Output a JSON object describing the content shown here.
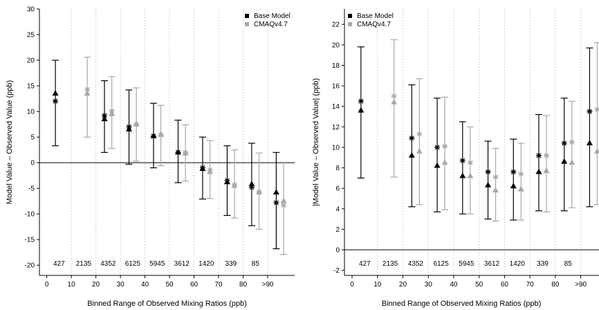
{
  "chart_data": [
    {
      "type": "scatter",
      "xlabel": "Binned Range of Observed Mixing Ratios (ppb)",
      "ylabel": "Model Value – Observed Value (ppb)",
      "xlim": [
        -3,
        101
      ],
      "ylim": [
        -22,
        30
      ],
      "xticks": [
        "0",
        "10",
        "20",
        "30",
        "40",
        "50",
        "60",
        "70",
        "80",
        ">90"
      ],
      "yticks": [
        "-20",
        "-15",
        "-10",
        "-5",
        "0",
        "5",
        "10",
        "15",
        "20",
        "25",
        "30"
      ],
      "bin_counts": [
        "427",
        "2135",
        "4352",
        "6125",
        "5945",
        "3612",
        "1420",
        "339",
        "85"
      ],
      "grid": "vertical dotted lines at bin edges",
      "reference_line": 0,
      "legend_position": "top-right",
      "legend": [
        "Base Model",
        "CMAQv4.7"
      ],
      "colors": {
        "base": "#000000",
        "cmaq": "#a8a8a8"
      },
      "series": [
        {
          "name": "Base Model",
          "x": [
            3.5,
            23.5,
            33.5,
            43.5,
            53.5,
            63.5,
            73.5,
            83.5,
            93.5
          ],
          "median": [
            13.5,
            8.5,
            6.5,
            5.2,
            2.0,
            -1.2,
            -3.8,
            -4.2,
            -5.8
          ],
          "mean": [
            12.0,
            9.2,
            7.0,
            5.2,
            2.0,
            -1.0,
            -3.5,
            -4.8,
            -7.8
          ],
          "lower": [
            3.3,
            2.0,
            -0.3,
            -1.0,
            -3.9,
            -7.1,
            -10.3,
            -12.3,
            -16.8
          ],
          "upper": [
            20.0,
            16.0,
            14.2,
            11.6,
            8.3,
            5.0,
            3.3,
            3.8,
            2.0
          ]
        },
        {
          "name": "CMAQv4.7",
          "x": [
            16.5,
            26.5,
            36.5,
            46.5,
            56.5,
            66.5,
            76.5,
            86.5,
            96.5
          ],
          "median": [
            13.5,
            9.5,
            7.5,
            5.5,
            1.8,
            -1.8,
            -4.5,
            -5.8,
            -7.5
          ],
          "mean": [
            14.3,
            10.1,
            7.5,
            5.4,
            2.0,
            -1.4,
            -4.3,
            -5.7,
            -8.3
          ],
          "lower": [
            5.0,
            2.8,
            0.3,
            -0.6,
            -3.6,
            -7.0,
            -10.8,
            -13.0,
            -17.9
          ],
          "upper": [
            20.6,
            16.8,
            14.6,
            11.2,
            7.4,
            4.3,
            2.5,
            1.9,
            0.1
          ]
        }
      ]
    },
    {
      "type": "scatter",
      "xlabel": "Binned Range of Observed Mixing Ratios (ppb)",
      "ylabel": "|Model Value – Observed Value| (ppb)",
      "xlim": [
        -3,
        101
      ],
      "ylim": [
        -2.5,
        23.5
      ],
      "xticks": [
        "0",
        "10",
        "20",
        "30",
        "40",
        "50",
        "60",
        "70",
        "80",
        ">90"
      ],
      "yticks": [
        "-2",
        "0",
        "2",
        "4",
        "6",
        "8",
        "10",
        "12",
        "14",
        "16",
        "18",
        "20",
        "22"
      ],
      "bin_counts": [
        "427",
        "2135",
        "4352",
        "6125",
        "5945",
        "3612",
        "1420",
        "339",
        "85"
      ],
      "grid": "vertical dotted lines at bin edges",
      "reference_line": 0,
      "legend_position": "top-left",
      "legend": [
        "Base Model",
        "CMAQv4.7"
      ],
      "colors": {
        "base": "#000000",
        "cmaq": "#a8a8a8"
      },
      "series": [
        {
          "name": "Base Model",
          "x": [
            3.5,
            23.5,
            33.5,
            43.5,
            53.5,
            63.5,
            73.5,
            83.5,
            93.5
          ],
          "median": [
            13.6,
            9.2,
            8.2,
            7.2,
            6.3,
            6.2,
            7.6,
            8.6,
            10.4
          ],
          "mean": [
            14.5,
            10.9,
            10.0,
            8.7,
            7.6,
            7.6,
            9.2,
            10.4,
            13.5
          ],
          "lower": [
            7.0,
            4.2,
            3.7,
            3.5,
            3.0,
            2.9,
            3.8,
            3.8,
            4.2
          ],
          "upper": [
            19.8,
            16.1,
            14.8,
            12.5,
            10.6,
            10.8,
            13.2,
            14.8,
            19.7
          ]
        },
        {
          "name": "CMAQv4.7",
          "x": [
            16.5,
            26.5,
            36.5,
            46.5,
            56.5,
            66.5,
            76.5,
            86.5,
            96.5
          ],
          "median": [
            14.4,
            9.6,
            8.5,
            7.2,
            5.8,
            5.9,
            7.7,
            8.5,
            9.6
          ],
          "mean": [
            15.0,
            11.3,
            10.1,
            8.5,
            7.1,
            7.4,
            9.2,
            10.5,
            13.7
          ],
          "lower": [
            7.1,
            4.4,
            3.9,
            3.5,
            2.8,
            2.9,
            3.7,
            4.1,
            4.4
          ],
          "upper": [
            20.5,
            16.7,
            14.9,
            12.0,
            9.9,
            10.4,
            13.1,
            14.5,
            20.2
          ]
        }
      ]
    }
  ]
}
